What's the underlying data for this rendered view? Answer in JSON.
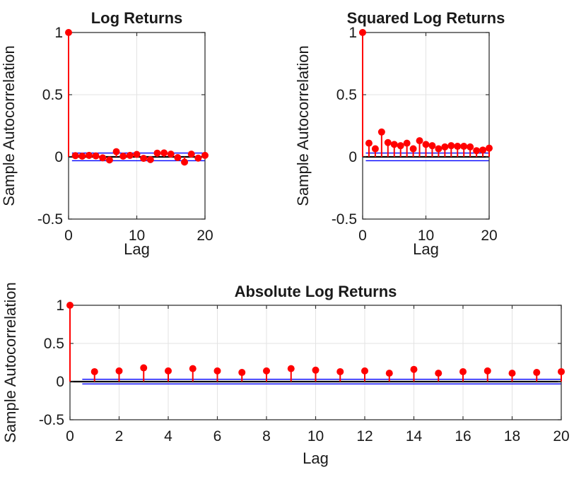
{
  "figure": {
    "background": "#ffffff",
    "colors": {
      "stem": "#ff0000",
      "marker": "#ff0000",
      "confidence_bound": "#0000ff",
      "zero_line": "#000000",
      "grid": "#e3e3e3",
      "axis": "#333333",
      "text": "#1a1a1a"
    }
  },
  "chart_data": [
    {
      "type": "scatter",
      "subtype": "stem-autocorrelation",
      "title": "Log Returns",
      "xlabel": "Lag",
      "ylabel": "Sample Autocorrelation",
      "x": [
        0,
        1,
        2,
        3,
        4,
        5,
        6,
        7,
        8,
        9,
        10,
        11,
        12,
        13,
        14,
        15,
        16,
        17,
        18,
        19,
        20
      ],
      "values": [
        1,
        0.01,
        0.006,
        0.012,
        0.008,
        -0.008,
        -0.025,
        0.042,
        0.006,
        0.012,
        0.02,
        -0.012,
        -0.022,
        0.03,
        0.032,
        0.022,
        -0.006,
        -0.042,
        0.022,
        -0.01,
        0.012
      ],
      "confidence_bounds": {
        "upper": 0.031,
        "lower": -0.031,
        "x_start": 0.5,
        "x_end": 20
      },
      "xlim": [
        0,
        20
      ],
      "ylim": [
        -0.5,
        1
      ],
      "xticks": [
        0,
        10,
        20
      ],
      "xtick_labels": [
        "0",
        "10",
        "20"
      ],
      "yticks": [
        -0.5,
        0,
        0.5,
        1
      ],
      "ytick_labels": [
        "-0.5",
        "0",
        "0.5",
        "1"
      ],
      "grid": true,
      "legend": null
    },
    {
      "type": "scatter",
      "subtype": "stem-autocorrelation",
      "title": "Squared Log Returns",
      "xlabel": "Lag",
      "ylabel": "Sample Autocorrelation",
      "x": [
        0,
        1,
        2,
        3,
        4,
        5,
        6,
        7,
        8,
        9,
        10,
        11,
        12,
        13,
        14,
        15,
        16,
        17,
        18,
        19,
        20
      ],
      "values": [
        1,
        0.11,
        0.065,
        0.2,
        0.115,
        0.1,
        0.09,
        0.11,
        0.065,
        0.13,
        0.1,
        0.09,
        0.065,
        0.08,
        0.09,
        0.085,
        0.085,
        0.08,
        0.05,
        0.055,
        0.07
      ],
      "confidence_bounds": {
        "upper": 0.031,
        "lower": -0.031,
        "x_start": 0.5,
        "x_end": 20
      },
      "xlim": [
        0,
        20
      ],
      "ylim": [
        -0.5,
        1
      ],
      "xticks": [
        0,
        10,
        20
      ],
      "xtick_labels": [
        "0",
        "10",
        "20"
      ],
      "yticks": [
        -0.5,
        0,
        0.5,
        1
      ],
      "ytick_labels": [
        "-0.5",
        "0",
        "0.5",
        "1"
      ],
      "grid": true,
      "legend": null
    },
    {
      "type": "scatter",
      "subtype": "stem-autocorrelation",
      "title": "Absolute Log Returns",
      "xlabel": "Lag",
      "ylabel": "Sample Autocorrelation",
      "x": [
        0,
        1,
        2,
        3,
        4,
        5,
        6,
        7,
        8,
        9,
        10,
        11,
        12,
        13,
        14,
        15,
        16,
        17,
        18,
        19,
        20
      ],
      "values": [
        1,
        0.13,
        0.14,
        0.18,
        0.14,
        0.17,
        0.14,
        0.12,
        0.14,
        0.17,
        0.15,
        0.13,
        0.14,
        0.11,
        0.16,
        0.11,
        0.13,
        0.14,
        0.11,
        0.12,
        0.13
      ],
      "confidence_bounds": {
        "upper": 0.031,
        "lower": -0.031,
        "x_start": 0.5,
        "x_end": 20
      },
      "xlim": [
        0,
        20
      ],
      "ylim": [
        -0.5,
        1
      ],
      "xticks": [
        0,
        2,
        4,
        6,
        8,
        10,
        12,
        14,
        16,
        18,
        20
      ],
      "xtick_labels": [
        "0",
        "2",
        "4",
        "6",
        "8",
        "10",
        "12",
        "14",
        "16",
        "18",
        "20"
      ],
      "yticks": [
        -0.5,
        0,
        0.5,
        1
      ],
      "ytick_labels": [
        "-0.5",
        "0",
        "0.5",
        "1"
      ],
      "grid": true,
      "legend": null
    }
  ]
}
